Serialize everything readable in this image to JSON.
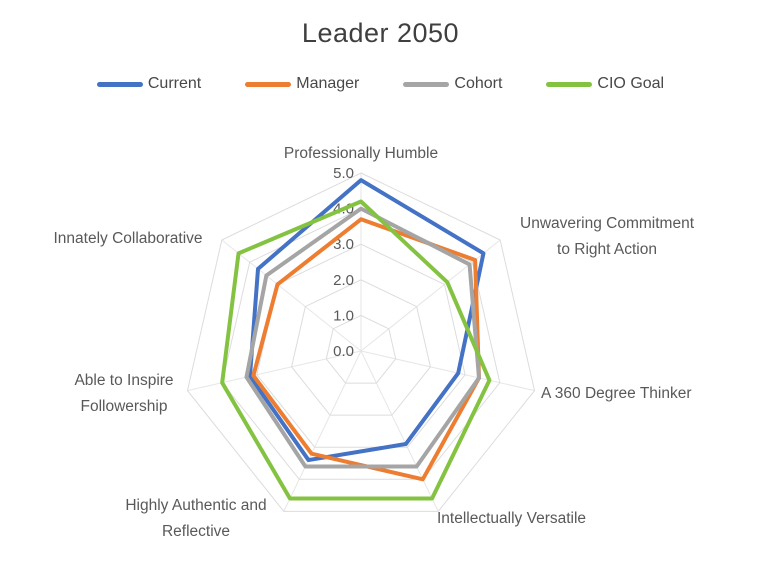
{
  "title": "Leader 2050",
  "chart_data": {
    "type": "radar",
    "title": "Leader 2050",
    "categories": [
      "Professionally Humble",
      "Unwavering Commitment to Right Action",
      "A 360 Degree Thinker",
      "Intellectually Versatile",
      "Highly Authentic and Reflective",
      "Able to Inspire Followership",
      "Innately Collaborative"
    ],
    "category_labels": [
      [
        "Professionally Humble"
      ],
      [
        "Unwavering Commitment",
        "to Right Action"
      ],
      [
        "A 360 Degree Thinker"
      ],
      [
        "Intellectually Versatile"
      ],
      [
        "Highly Authentic and",
        "Reflective"
      ],
      [
        "Able to Inspire",
        "Followership"
      ],
      [
        "Innately Collaborative"
      ]
    ],
    "series": [
      {
        "name": "Current",
        "color": "#4472C4",
        "values": [
          4.8,
          4.4,
          2.8,
          2.9,
          3.4,
          3.2,
          3.7
        ]
      },
      {
        "name": "Manager",
        "color": "#ED7D31",
        "values": [
          3.7,
          4.1,
          3.4,
          4.0,
          3.2,
          3.1,
          3.0
        ]
      },
      {
        "name": "Cohort",
        "color": "#A5A5A5",
        "values": [
          4.0,
          3.9,
          3.4,
          3.6,
          3.6,
          3.3,
          3.4
        ]
      },
      {
        "name": "CIO Goal",
        "color": "#84C341",
        "values": [
          4.2,
          3.1,
          3.7,
          4.6,
          4.6,
          4.0,
          4.4
        ]
      }
    ],
    "radial_axis": {
      "min": 0,
      "max": 5,
      "step": 1,
      "tick_labels": [
        "5.0",
        "4.0",
        "3.0",
        "2.0",
        "1.0",
        "0.0"
      ]
    },
    "legend_position": "top",
    "grid": "on",
    "gridline_color": "#dcdcdc",
    "label_color": "#595959",
    "title_color": "#3f3f3f"
  }
}
